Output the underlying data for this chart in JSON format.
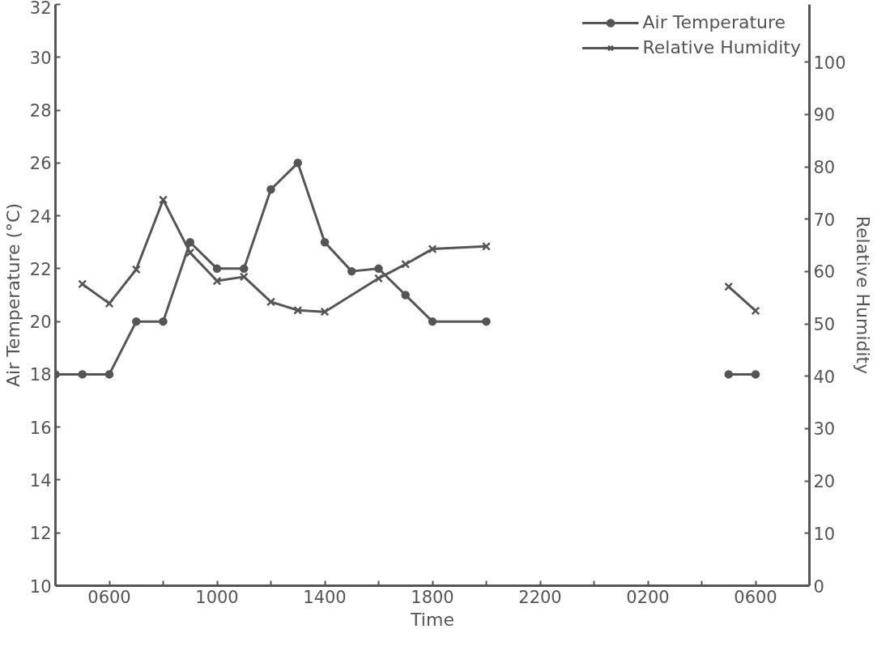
{
  "chart_data": {
    "type": "line",
    "xlabel": "Time",
    "ylabel": "Air Temperature (°C)",
    "y2label": "Relative Humidity",
    "categories": [
      null,
      null,
      "0600",
      null,
      null,
      null,
      "1000",
      null,
      null,
      null,
      "1400",
      null,
      null,
      null,
      "1800",
      null,
      null,
      null,
      "2200",
      null,
      null,
      null,
      "0200",
      null,
      null,
      null,
      "0600",
      null,
      null
    ],
    "ylim": [
      10,
      32
    ],
    "yticks": [
      10,
      12,
      14,
      16,
      18,
      20,
      22,
      24,
      26,
      28,
      30,
      32
    ],
    "y2lim": [
      0,
      111
    ],
    "y2ticks": [
      0,
      10,
      20,
      30,
      40,
      50,
      60,
      70,
      80,
      90,
      100
    ],
    "grid": false,
    "legend": "top right",
    "line_style": "solid",
    "series": [
      {
        "name": "Air Temperature",
        "color": "#555555",
        "marker": "circle",
        "values": [
          18,
          18,
          18,
          20,
          20,
          23,
          22,
          22,
          25,
          26,
          23,
          21.9,
          22,
          21,
          20,
          null,
          20,
          null,
          null,
          null,
          null,
          null,
          null,
          null,
          null,
          null,
          null,
          null,
          null
        ]
      },
      {
        "name": "Relative Humidity",
        "color": "#555555",
        "marker": "cross",
        "axis": "y2",
        "values": [
          null,
          57.6,
          53.9,
          60.4,
          73.7,
          63.6,
          58.2,
          59,
          54.2,
          52.6,
          52.3,
          null,
          58.7,
          61.4,
          64.3,
          null,
          64.8,
          null,
          null,
          null,
          null,
          null,
          null,
          null,
          null,
          null,
          null,
          null,
          null
        ]
      },
      {
        "color": "#555555",
        "marker": "circle",
        "values": [
          null,
          null,
          null,
          null,
          null,
          null,
          null,
          null,
          null,
          null,
          null,
          null,
          null,
          null,
          null,
          null,
          null,
          null,
          null,
          null,
          null,
          null,
          null,
          null,
          null,
          18,
          18,
          null,
          null
        ]
      },
      {
        "color": "#555555",
        "marker": "cross",
        "axis": "y2",
        "values": [
          null,
          null,
          null,
          null,
          null,
          null,
          null,
          null,
          null,
          null,
          null,
          null,
          null,
          null,
          null,
          null,
          null,
          null,
          null,
          null,
          null,
          null,
          null,
          null,
          null,
          57.1,
          52.5,
          null,
          null
        ]
      }
    ]
  }
}
